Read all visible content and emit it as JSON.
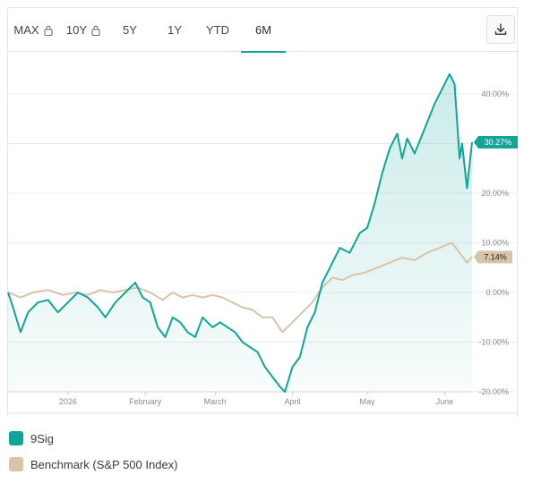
{
  "tabs": [
    {
      "label": "MAX",
      "locked": true
    },
    {
      "label": "10Y",
      "locked": true
    },
    {
      "label": "5Y",
      "locked": false
    },
    {
      "label": "1Y",
      "locked": false
    },
    {
      "label": "YTD",
      "locked": false
    },
    {
      "label": "6M",
      "locked": false,
      "active": true
    }
  ],
  "download_icon": "download-icon",
  "colors": {
    "nine_sig": "#10a597",
    "benchmark": "#d8c4a7",
    "accent": "#10a597"
  },
  "chart_data": {
    "type": "line",
    "ylim": [
      -20,
      45
    ],
    "y_ticks": [
      "40.00%",
      "30.00%",
      "20.00%",
      "10.00%",
      "0.00%",
      "-10.00%",
      "-20.00%"
    ],
    "y_tick_values": [
      40,
      30,
      20,
      10,
      0,
      -10,
      -20
    ],
    "x_ticks": [
      "2026",
      "February",
      "March",
      "April",
      "May",
      "June"
    ],
    "x_tick_dates": [
      "2026-01-01",
      "2026-02-01",
      "2026-03-01",
      "2026-04-01",
      "2026-05-01",
      "2026-06-01"
    ],
    "x_range": [
      "2025-12-08",
      "2026-06-12"
    ],
    "grid": true,
    "legend_position": "bottom-left",
    "series": [
      {
        "name": "9Sig",
        "color": "#10a597",
        "end_label": "30.27%",
        "fill": true,
        "points": [
          [
            "2025-12-08",
            0
          ],
          [
            "2025-12-10",
            -3
          ],
          [
            "2025-12-13",
            -8
          ],
          [
            "2025-12-16",
            -4
          ],
          [
            "2025-12-20",
            -2
          ],
          [
            "2025-12-24",
            -1.5
          ],
          [
            "2025-12-28",
            -4
          ],
          [
            "2026-01-01",
            -2
          ],
          [
            "2026-01-05",
            0
          ],
          [
            "2026-01-09",
            -1
          ],
          [
            "2026-01-13",
            -3
          ],
          [
            "2026-01-16",
            -5
          ],
          [
            "2026-01-20",
            -2
          ],
          [
            "2026-01-24",
            0
          ],
          [
            "2026-01-28",
            2
          ],
          [
            "2026-01-31",
            -1
          ],
          [
            "2026-02-03",
            -2
          ],
          [
            "2026-02-06",
            -7
          ],
          [
            "2026-02-09",
            -9
          ],
          [
            "2026-02-12",
            -5
          ],
          [
            "2026-02-15",
            -6
          ],
          [
            "2026-02-18",
            -8
          ],
          [
            "2026-02-21",
            -9
          ],
          [
            "2026-02-24",
            -5
          ],
          [
            "2026-02-28",
            -7
          ],
          [
            "2026-03-03",
            -6
          ],
          [
            "2026-03-06",
            -7
          ],
          [
            "2026-03-09",
            -8
          ],
          [
            "2026-03-12",
            -10
          ],
          [
            "2026-03-15",
            -11
          ],
          [
            "2026-03-18",
            -12
          ],
          [
            "2026-03-21",
            -15
          ],
          [
            "2026-03-24",
            -17
          ],
          [
            "2026-03-27",
            -19
          ],
          [
            "2026-03-29",
            -20
          ],
          [
            "2026-04-01",
            -15
          ],
          [
            "2026-04-04",
            -13
          ],
          [
            "2026-04-07",
            -7
          ],
          [
            "2026-04-10",
            -4
          ],
          [
            "2026-04-13",
            2
          ],
          [
            "2026-04-16",
            5
          ],
          [
            "2026-04-20",
            9
          ],
          [
            "2026-04-24",
            8
          ],
          [
            "2026-04-28",
            12
          ],
          [
            "2026-05-01",
            13
          ],
          [
            "2026-05-04",
            18
          ],
          [
            "2026-05-07",
            24
          ],
          [
            "2026-05-10",
            29
          ],
          [
            "2026-05-13",
            32
          ],
          [
            "2026-05-15",
            27
          ],
          [
            "2026-05-17",
            31
          ],
          [
            "2026-05-20",
            28
          ],
          [
            "2026-05-24",
            33
          ],
          [
            "2026-05-28",
            38
          ],
          [
            "2026-06-01",
            42
          ],
          [
            "2026-06-03",
            44
          ],
          [
            "2026-06-05",
            42
          ],
          [
            "2026-06-07",
            27
          ],
          [
            "2026-06-08",
            30
          ],
          [
            "2026-06-10",
            21
          ],
          [
            "2026-06-12",
            30.27
          ]
        ]
      },
      {
        "name": "Benchmark (S&P 500 Index)",
        "color": "#d8c4a7",
        "end_label": "7.14%",
        "fill": false,
        "points": [
          [
            "2025-12-08",
            0
          ],
          [
            "2025-12-13",
            -1
          ],
          [
            "2025-12-18",
            0
          ],
          [
            "2025-12-24",
            0.5
          ],
          [
            "2025-12-30",
            -0.5
          ],
          [
            "2026-01-04",
            0
          ],
          [
            "2026-01-09",
            -0.5
          ],
          [
            "2026-01-14",
            0.5
          ],
          [
            "2026-01-19",
            0
          ],
          [
            "2026-01-24",
            0.5
          ],
          [
            "2026-01-29",
            1
          ],
          [
            "2026-02-03",
            0
          ],
          [
            "2026-02-08",
            -1.5
          ],
          [
            "2026-02-12",
            0
          ],
          [
            "2026-02-16",
            -1
          ],
          [
            "2026-02-20",
            -0.5
          ],
          [
            "2026-02-24",
            -1
          ],
          [
            "2026-02-28",
            -0.5
          ],
          [
            "2026-03-04",
            -1
          ],
          [
            "2026-03-08",
            -2
          ],
          [
            "2026-03-12",
            -3
          ],
          [
            "2026-03-16",
            -3.5
          ],
          [
            "2026-03-20",
            -5
          ],
          [
            "2026-03-24",
            -5
          ],
          [
            "2026-03-28",
            -8
          ],
          [
            "2026-04-01",
            -6
          ],
          [
            "2026-04-05",
            -4
          ],
          [
            "2026-04-09",
            -2
          ],
          [
            "2026-04-13",
            1
          ],
          [
            "2026-04-17",
            3
          ],
          [
            "2026-04-21",
            2.5
          ],
          [
            "2026-04-25",
            3.5
          ],
          [
            "2026-04-30",
            4
          ],
          [
            "2026-05-05",
            5
          ],
          [
            "2026-05-10",
            6
          ],
          [
            "2026-05-15",
            7
          ],
          [
            "2026-05-20",
            6.5
          ],
          [
            "2026-05-25",
            8
          ],
          [
            "2026-05-30",
            9
          ],
          [
            "2026-06-04",
            10
          ],
          [
            "2026-06-07",
            8
          ],
          [
            "2026-06-10",
            6
          ],
          [
            "2026-06-12",
            7.14
          ]
        ]
      }
    ]
  },
  "legend": [
    {
      "label": "9Sig",
      "color": "#10a597"
    },
    {
      "label": "Benchmark (S&P 500 Index)",
      "color": "#d8c4a7"
    }
  ]
}
